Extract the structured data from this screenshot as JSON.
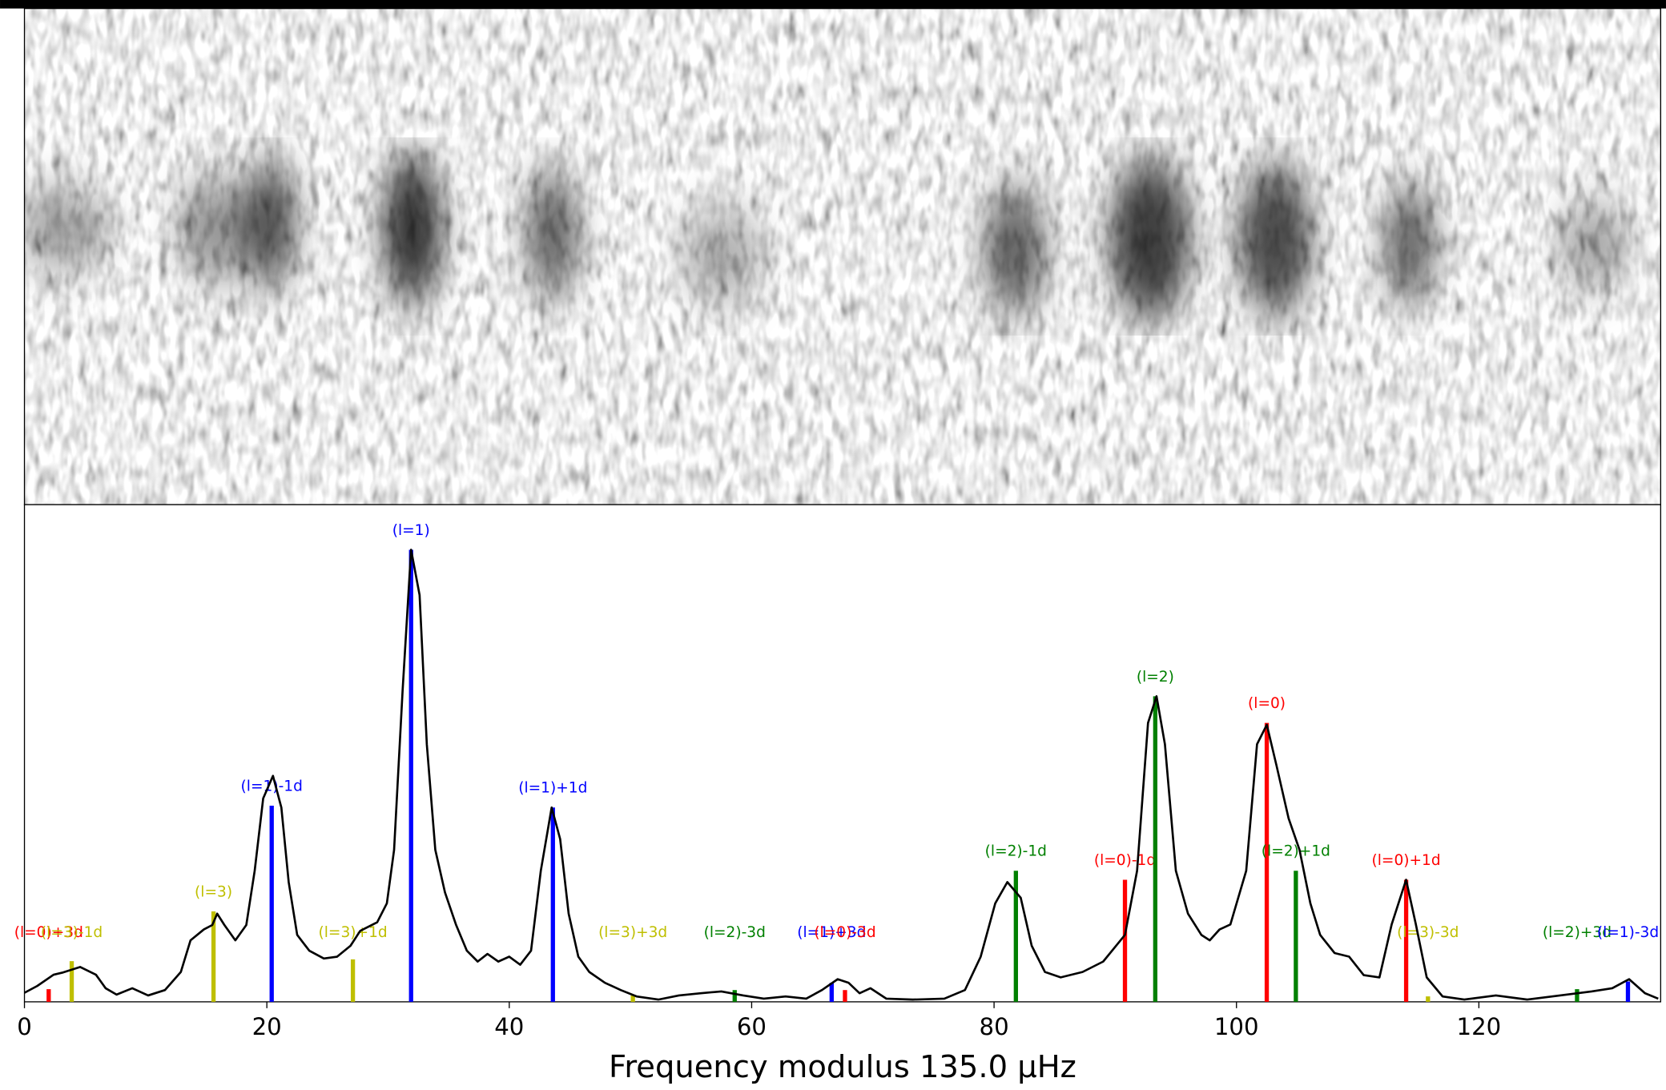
{
  "chart_data": {
    "type": "line",
    "xlabel": "Frequency modulus 135.0 μHz",
    "xlim": [
      0,
      135
    ],
    "xticks": [
      0,
      20,
      40,
      60,
      80,
      100,
      120
    ],
    "ylim": [
      0,
      1.1
    ],
    "curve": {
      "color": "#000000",
      "x": [
        0,
        1.05,
        2.4,
        3.2,
        4.6,
        5.9,
        6.7,
        7.6,
        8.9,
        10.2,
        11.6,
        12.9,
        13.7,
        14.8,
        15.5,
        15.9,
        16.5,
        17.4,
        18.3,
        19.0,
        19.7,
        20.5,
        21.2,
        21.8,
        22.5,
        23.5,
        24.7,
        25.8,
        26.9,
        27.7,
        29.1,
        29.9,
        30.5,
        31.2,
        31.9,
        32.6,
        33.2,
        33.9,
        34.7,
        35.6,
        36.5,
        37.4,
        38.2,
        39.1,
        40.0,
        40.9,
        41.8,
        42.6,
        43.5,
        44.2,
        44.9,
        45.7,
        46.6,
        47.9,
        49.2,
        50.5,
        52.3,
        54.0,
        55.8,
        57.5,
        59.3,
        61.0,
        62.8,
        64.5,
        65.8,
        67.1,
        68.0,
        68.9,
        69.8,
        71.1,
        73.3,
        75.9,
        77.6,
        78.9,
        80.1,
        81.1,
        82.2,
        83.1,
        84.2,
        85.5,
        87.3,
        89.0,
        90.8,
        91.8,
        92.7,
        93.4,
        94.1,
        95.0,
        96.0,
        97.1,
        97.8,
        98.6,
        99.5,
        100.8,
        101.7,
        102.5,
        103.3,
        104.3,
        105.2,
        106.1,
        106.9,
        108.1,
        109.3,
        110.5,
        111.8,
        112.8,
        114.0,
        114.8,
        115.7,
        117.0,
        118.8,
        121.4,
        124.0,
        126.7,
        129.3,
        131.0,
        132.4,
        133.7,
        134.8
      ],
      "y": [
        0.02,
        0.035,
        0.06,
        0.065,
        0.077,
        0.06,
        0.03,
        0.016,
        0.03,
        0.014,
        0.026,
        0.066,
        0.136,
        0.16,
        0.17,
        0.195,
        0.17,
        0.136,
        0.17,
        0.29,
        0.45,
        0.5,
        0.43,
        0.265,
        0.148,
        0.113,
        0.096,
        0.1,
        0.124,
        0.157,
        0.176,
        0.218,
        0.336,
        0.688,
        1.0,
        0.9,
        0.57,
        0.336,
        0.242,
        0.171,
        0.113,
        0.089,
        0.106,
        0.089,
        0.1,
        0.082,
        0.113,
        0.29,
        0.43,
        0.36,
        0.195,
        0.1,
        0.066,
        0.042,
        0.026,
        0.012,
        0.005,
        0.014,
        0.019,
        0.023,
        0.014,
        0.007,
        0.012,
        0.007,
        0.026,
        0.05,
        0.042,
        0.019,
        0.03,
        0.007,
        0.005,
        0.007,
        0.026,
        0.1,
        0.218,
        0.265,
        0.23,
        0.124,
        0.066,
        0.054,
        0.066,
        0.089,
        0.148,
        0.29,
        0.617,
        0.676,
        0.57,
        0.29,
        0.195,
        0.148,
        0.136,
        0.16,
        0.171,
        0.29,
        0.57,
        0.613,
        0.523,
        0.406,
        0.336,
        0.218,
        0.148,
        0.108,
        0.1,
        0.059,
        0.054,
        0.171,
        0.27,
        0.171,
        0.054,
        0.012,
        0.005,
        0.014,
        0.005,
        0.014,
        0.023,
        0.03,
        0.05,
        0.019,
        0.007
      ]
    },
    "markers": [
      {
        "label": "(l=0)+3d",
        "x": 2.0,
        "height": 0.028,
        "color": "#ff0000"
      },
      {
        "label": "(l=3)-1d",
        "x": 3.9,
        "height": 0.09,
        "color": "#bfbf00"
      },
      {
        "label": "(l=3)",
        "x": 15.6,
        "height": 0.2,
        "color": "#bfbf00"
      },
      {
        "label": "(l=1)-1d",
        "x": 20.4,
        "height": 0.434,
        "color": "#0000ff"
      },
      {
        "label": "(l=3)+1d",
        "x": 27.1,
        "height": 0.094,
        "color": "#bfbf00"
      },
      {
        "label": "(l=1)",
        "x": 31.9,
        "height": 1.0,
        "color": "#0000ff"
      },
      {
        "label": "(l=1)+1d",
        "x": 43.6,
        "height": 0.43,
        "color": "#0000ff"
      },
      {
        "label": "(l=3)+3d",
        "x": 50.2,
        "height": 0.014,
        "color": "#bfbf00"
      },
      {
        "label": "(l=2)-3d",
        "x": 58.6,
        "height": 0.026,
        "color": "#008000"
      },
      {
        "label": "(l=1)+3d",
        "x": 66.6,
        "height": 0.042,
        "color": "#0000ff"
      },
      {
        "label": "(l=0)-3d",
        "x": 67.7,
        "height": 0.026,
        "color": "#ff0000"
      },
      {
        "label": "(l=2)-1d",
        "x": 81.8,
        "height": 0.29,
        "color": "#008000"
      },
      {
        "label": "(l=0)-1d",
        "x": 90.8,
        "height": 0.27,
        "color": "#ff0000"
      },
      {
        "label": "(l=2)",
        "x": 93.3,
        "height": 0.676,
        "color": "#008000"
      },
      {
        "label": "(l=0)",
        "x": 102.5,
        "height": 0.617,
        "color": "#ff0000"
      },
      {
        "label": "(l=2)+1d",
        "x": 104.9,
        "height": 0.29,
        "color": "#008000"
      },
      {
        "label": "(l=0)+1d",
        "x": 114.0,
        "height": 0.27,
        "color": "#ff0000"
      },
      {
        "label": "(l=3)-3d",
        "x": 115.8,
        "height": 0.012,
        "color": "#bfbf00"
      },
      {
        "label": "(l=2)+3d",
        "x": 128.1,
        "height": 0.028,
        "color": "#008000"
      },
      {
        "label": "(l=1)-3d",
        "x": 132.3,
        "height": 0.045,
        "color": "#0000ff"
      }
    ]
  }
}
